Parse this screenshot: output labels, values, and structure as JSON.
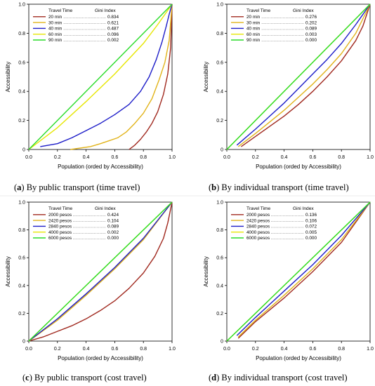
{
  "chart_data": [
    {
      "id": "a",
      "type": "line",
      "caption": {
        "letter": "a",
        "text": " By public transport (time travel)"
      },
      "xlabel": "Population (orded by Accessibility)",
      "ylabel": "Accessibility",
      "xlim": [
        0,
        1
      ],
      "ylim": [
        0,
        1
      ],
      "xticks": [
        "0.0",
        "0.2",
        "0.4",
        "0.6",
        "0.8",
        "1.0"
      ],
      "yticks": [
        "0",
        "0.2",
        "0.4",
        "0.6",
        "0.8",
        "1.0"
      ],
      "legend": {
        "header_name": "Travel Time",
        "header_value": "Gini Index",
        "placement": "top-left"
      },
      "series": [
        {
          "name": "20 min",
          "gini": "0.834",
          "color": "#a0281e",
          "x": [
            0.7,
            0.74,
            0.78,
            0.82,
            0.86,
            0.9,
            0.94,
            0.97,
            0.99,
            1.0
          ],
          "y": [
            0.0,
            0.03,
            0.07,
            0.12,
            0.18,
            0.26,
            0.38,
            0.52,
            0.7,
            1.0
          ]
        },
        {
          "name": "30 min",
          "gini": "0.621",
          "color": "#e1b319",
          "x": [
            0.29,
            0.36,
            0.43,
            0.5,
            0.56,
            0.62,
            0.68,
            0.74,
            0.8,
            0.86,
            0.91,
            0.95,
            0.98,
            1.0
          ],
          "y": [
            0.0,
            0.01,
            0.02,
            0.04,
            0.06,
            0.08,
            0.12,
            0.18,
            0.25,
            0.35,
            0.48,
            0.6,
            0.75,
            1.0
          ]
        },
        {
          "name": "40 min",
          "gini": "0.487",
          "color": "#1c1cc8",
          "x": [
            0.08,
            0.2,
            0.3,
            0.4,
            0.5,
            0.6,
            0.7,
            0.78,
            0.84,
            0.89,
            0.93,
            0.96,
            0.98,
            1.0
          ],
          "y": [
            0.02,
            0.04,
            0.08,
            0.13,
            0.18,
            0.24,
            0.31,
            0.4,
            0.5,
            0.62,
            0.74,
            0.85,
            0.93,
            1.0
          ]
        },
        {
          "name": "60 min",
          "gini": "0.096",
          "color": "#e6e600",
          "x": [
            0.0,
            0.2,
            0.4,
            0.6,
            0.8,
            0.9,
            1.0
          ],
          "y": [
            0.0,
            0.15,
            0.33,
            0.52,
            0.73,
            0.86,
            1.0
          ]
        },
        {
          "name": "90 min",
          "gini": "0.002",
          "color": "#28dc28",
          "x": [
            0.0,
            1.0
          ],
          "y": [
            0.0,
            1.0
          ]
        }
      ]
    },
    {
      "id": "b",
      "type": "line",
      "caption": {
        "letter": "b",
        "text": " By individual transport (time travel)"
      },
      "xlabel": "Population (orded by Accessibility)",
      "ylabel": "Accessibility",
      "xlim": [
        0,
        1
      ],
      "ylim": [
        0,
        1
      ],
      "xticks": [
        "0.0",
        "0.2",
        "0.4",
        "0.6",
        "0.8",
        "1.0"
      ],
      "yticks": [
        "0",
        "0.2",
        "0.4",
        "0.6",
        "0.8",
        "1.0"
      ],
      "legend": {
        "header_name": "Travel Time",
        "header_value": "Gini Index",
        "placement": "top-left"
      },
      "series": [
        {
          "name": "20 min",
          "gini": "0.276",
          "color": "#a0281e",
          "x": [
            0.1,
            0.2,
            0.3,
            0.4,
            0.5,
            0.6,
            0.7,
            0.8,
            0.9,
            0.95,
            1.0
          ],
          "y": [
            0.02,
            0.09,
            0.16,
            0.23,
            0.31,
            0.4,
            0.5,
            0.61,
            0.75,
            0.85,
            1.0
          ]
        },
        {
          "name": "30 min",
          "gini": "0.202",
          "color": "#e1b319",
          "x": [
            0.08,
            0.2,
            0.3,
            0.4,
            0.5,
            0.6,
            0.7,
            0.8,
            0.9,
            1.0
          ],
          "y": [
            0.02,
            0.11,
            0.19,
            0.27,
            0.36,
            0.45,
            0.55,
            0.66,
            0.8,
            1.0
          ]
        },
        {
          "name": "40 min",
          "gini": "0.089",
          "color": "#1c1cc8",
          "x": [
            0.07,
            0.2,
            0.3,
            0.4,
            0.5,
            0.6,
            0.7,
            0.8,
            0.9,
            1.0
          ],
          "y": [
            0.03,
            0.14,
            0.23,
            0.32,
            0.42,
            0.52,
            0.62,
            0.73,
            0.86,
            1.0
          ]
        },
        {
          "name": "60 min",
          "gini": "0.003",
          "color": "#e6e600",
          "x": [
            0.0,
            1.0
          ],
          "y": [
            0.0,
            1.0
          ]
        },
        {
          "name": "90 min",
          "gini": "0.000",
          "color": "#28dc28",
          "x": [
            0.0,
            1.0
          ],
          "y": [
            0.0,
            1.0
          ]
        }
      ]
    },
    {
      "id": "c",
      "type": "line",
      "caption": {
        "letter": "c",
        "text": " By public transport (cost travel)"
      },
      "xlabel": "Population (orded by Accessibility)",
      "ylabel": "Accessibility",
      "xlim": [
        0,
        1
      ],
      "ylim": [
        0,
        1
      ],
      "xticks": [
        "0.0",
        "0.2",
        "0.4",
        "0.6",
        "0.8",
        "1.0"
      ],
      "yticks": [
        "0",
        "0.2",
        "0.4",
        "0.6",
        "0.8",
        "1.0"
      ],
      "legend": {
        "header_name": "Travel Time",
        "header_value": "Gini Index",
        "placement": "top-left"
      },
      "series": [
        {
          "name": "2000 pesos",
          "gini": "0.424",
          "color": "#a0281e",
          "x": [
            0.0,
            0.1,
            0.2,
            0.3,
            0.4,
            0.5,
            0.6,
            0.7,
            0.8,
            0.88,
            0.94,
            0.97,
            1.0
          ],
          "y": [
            0.0,
            0.03,
            0.07,
            0.11,
            0.16,
            0.22,
            0.29,
            0.38,
            0.49,
            0.61,
            0.74,
            0.85,
            1.0
          ]
        },
        {
          "name": "2420 pesos",
          "gini": "0.104",
          "color": "#e1b319",
          "x": [
            0.0,
            0.2,
            0.4,
            0.6,
            0.8,
            1.0
          ],
          "y": [
            0.0,
            0.15,
            0.33,
            0.52,
            0.73,
            1.0
          ]
        },
        {
          "name": "2840 pesos",
          "gini": "0.089",
          "color": "#1c1cc8",
          "x": [
            0.0,
            0.2,
            0.4,
            0.6,
            0.8,
            1.0
          ],
          "y": [
            0.0,
            0.16,
            0.34,
            0.53,
            0.74,
            1.0
          ]
        },
        {
          "name": "4000 pesos",
          "gini": "0.002",
          "color": "#e6e600",
          "x": [
            0.0,
            1.0
          ],
          "y": [
            0.0,
            1.0
          ]
        },
        {
          "name": "6000 pesos",
          "gini": "0.000",
          "color": "#28dc28",
          "x": [
            0.0,
            1.0
          ],
          "y": [
            0.0,
            1.0
          ]
        }
      ]
    },
    {
      "id": "d",
      "type": "line",
      "caption": {
        "letter": "d",
        "text": " By individual transport (cost travel)"
      },
      "xlabel": "Population (orded by Accessibility)",
      "ylabel": "Accessibility",
      "xlim": [
        0,
        1
      ],
      "ylim": [
        0,
        1
      ],
      "xticks": [
        "0.0",
        "0.2",
        "0.4",
        "0.6",
        "0.8",
        "1.0"
      ],
      "yticks": [
        "0",
        "0.2",
        "0.4",
        "0.6",
        "0.8",
        "1.0"
      ],
      "legend": {
        "header_name": "Travel Time",
        "header_value": "Gini Index",
        "placement": "top-left"
      },
      "series": [
        {
          "name": "2000 pesos",
          "gini": "0.136",
          "color": "#a0281e",
          "x": [
            0.08,
            0.2,
            0.4,
            0.6,
            0.8,
            1.0
          ],
          "y": [
            0.02,
            0.14,
            0.31,
            0.5,
            0.71,
            1.0
          ]
        },
        {
          "name": "2420 pesos",
          "gini": "0.106",
          "color": "#e1b319",
          "x": [
            0.08,
            0.2,
            0.4,
            0.6,
            0.8,
            1.0
          ],
          "y": [
            0.03,
            0.15,
            0.33,
            0.52,
            0.73,
            1.0
          ]
        },
        {
          "name": "2840 pesos",
          "gini": "0.072",
          "color": "#1c1cc8",
          "x": [
            0.07,
            0.2,
            0.4,
            0.6,
            0.8,
            1.0
          ],
          "y": [
            0.04,
            0.17,
            0.36,
            0.55,
            0.76,
            1.0
          ]
        },
        {
          "name": "4000 pesos",
          "gini": "0.005",
          "color": "#e6e600",
          "x": [
            0.0,
            1.0
          ],
          "y": [
            0.0,
            1.0
          ]
        },
        {
          "name": "6000 pesos",
          "gini": "0.000",
          "color": "#28dc28",
          "x": [
            0.0,
            1.0
          ],
          "y": [
            0.0,
            1.0
          ]
        }
      ]
    }
  ]
}
